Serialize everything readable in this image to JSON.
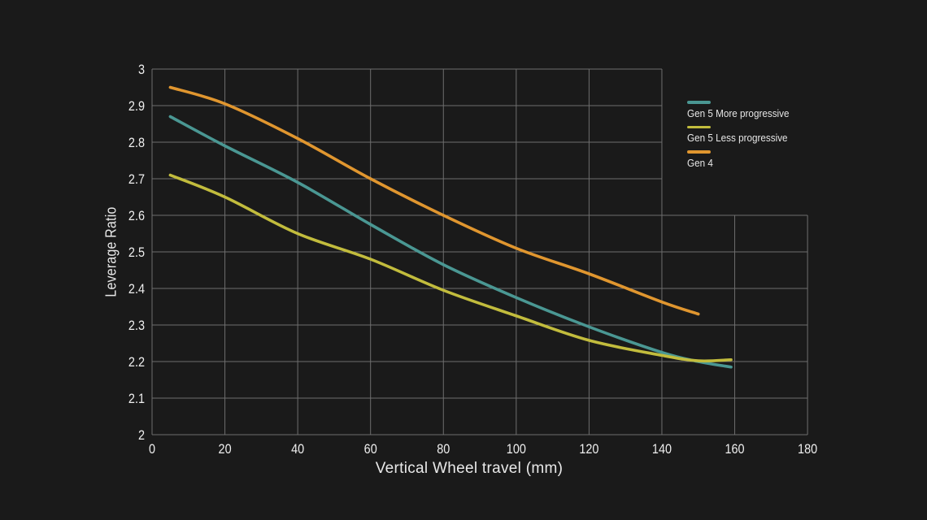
{
  "colors": {
    "background": "#1a1a1a",
    "grid": "#6e6e6e",
    "text": "#e9e9e9"
  },
  "chart_data": {
    "type": "line",
    "title": "",
    "xlabel": "Vertical Wheel travel (mm)",
    "ylabel": "Leverage Ratio",
    "xlim": [
      0,
      180
    ],
    "ylim": [
      2,
      3
    ],
    "x_ticks": [
      0,
      20,
      40,
      60,
      80,
      100,
      120,
      140,
      160,
      180
    ],
    "y_ticks": [
      2,
      2.1,
      2.2,
      2.3,
      2.4,
      2.5,
      2.6,
      2.7,
      2.8,
      2.9,
      3
    ],
    "grid": {
      "on": true,
      "upper_region_x_max": 140,
      "upper_region_y_min": 2.6
    },
    "legend_position": "inside-top-right",
    "series": [
      {
        "name": "Gen 5 More progressive",
        "color": "#4a9793",
        "points": [
          [
            5,
            2.87
          ],
          [
            20,
            2.79
          ],
          [
            40,
            2.69
          ],
          [
            60,
            2.575
          ],
          [
            80,
            2.465
          ],
          [
            100,
            2.375
          ],
          [
            120,
            2.295
          ],
          [
            140,
            2.225
          ],
          [
            150,
            2.2
          ],
          [
            159,
            2.185
          ]
        ]
      },
      {
        "name": "Gen 5 Less progressive",
        "color": "#c2bc3d",
        "points": [
          [
            5,
            2.71
          ],
          [
            20,
            2.65
          ],
          [
            40,
            2.55
          ],
          [
            60,
            2.48
          ],
          [
            80,
            2.395
          ],
          [
            100,
            2.325
          ],
          [
            120,
            2.258
          ],
          [
            140,
            2.217
          ],
          [
            150,
            2.202
          ],
          [
            159,
            2.205
          ]
        ]
      },
      {
        "name": "Gen 4",
        "color": "#e0962f",
        "points": [
          [
            5,
            2.95
          ],
          [
            20,
            2.905
          ],
          [
            40,
            2.81
          ],
          [
            60,
            2.7
          ],
          [
            80,
            2.6
          ],
          [
            100,
            2.51
          ],
          [
            120,
            2.44
          ],
          [
            140,
            2.363
          ],
          [
            150,
            2.33
          ]
        ]
      }
    ]
  }
}
